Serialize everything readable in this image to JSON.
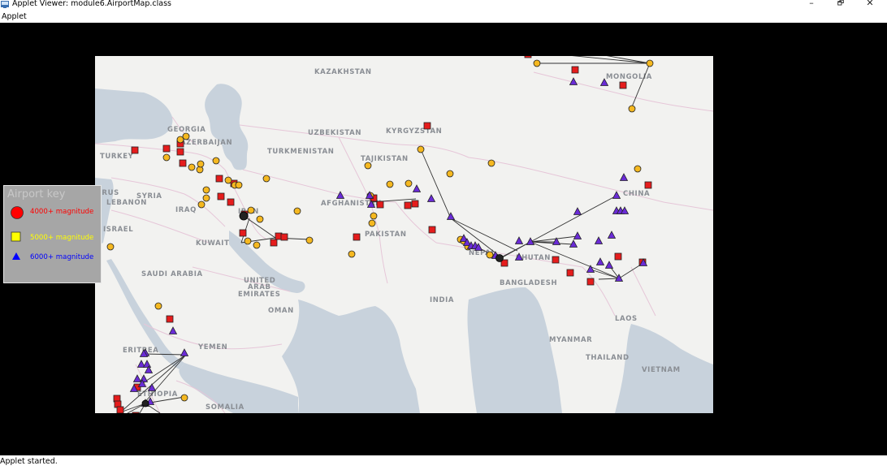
{
  "window": {
    "title": "Applet Viewer: module6.AirportMap.class",
    "minimize_glyph": "–",
    "maximize_glyph": "🗗",
    "close_glyph": "✕"
  },
  "menu": {
    "applet_label": "Applet"
  },
  "status": {
    "text": "Applet started."
  },
  "legend": {
    "title": "Airport key",
    "items": [
      {
        "label": "4000+ magnitude",
        "color": "#ff0000",
        "shape": "circle"
      },
      {
        "label": "5000+ magnitude",
        "color": "#ffff00",
        "shape": "square"
      },
      {
        "label": "6000+ magnitude",
        "color": "#0000ff",
        "shape": "triangle"
      }
    ]
  },
  "map": {
    "labels": {
      "kazakhstan": "KAZAKHSTAN",
      "mongolia": "MONGOLIA",
      "georgia": "GEORGIA",
      "azerbaijan": "AZERBAIJAN",
      "uzbekistan": "UZBEKISTAN",
      "kyrgyzstan": "KYRGYZSTAN",
      "turkey": "TURKEY",
      "turkmenistan": "TURKMENISTAN",
      "tajikistan": "TAJIKISTAN",
      "cyprus": "CYPRUS",
      "syria": "SYRIA",
      "lebanon": "LEBANON",
      "iraq": "IRAQ",
      "iran": "IRAN",
      "afghanistan": "AFGHANISTAN",
      "china": "CHINA",
      "israel": "ISRAEL",
      "pakistan": "PAKISTAN",
      "kuwait": "KUWAIT",
      "nepal": "NEPAL",
      "bhutan": "BHUTAN",
      "saudi_arabia": "SAUDI ARABIA",
      "uae_1": "UNITED",
      "uae_2": "ARAB",
      "uae_3": "EMIRATES",
      "bangladesh": "BANGLADESH",
      "india": "INDIA",
      "oman": "OMAN",
      "laos": "LAOS",
      "yemen": "YEMEN",
      "myanmar": "MYANMAR",
      "eritrea": "ERITREA",
      "thailand": "THAILAND",
      "vietnam": "VIETNAM",
      "ethiopia": "ETHIOPIA",
      "somalia": "SOMALIA"
    },
    "colors": {
      "land": "#f2f2f0",
      "water": "#c8d2dc",
      "border": "#e6c6d8",
      "red_marker": "#e51c1c",
      "yellow_marker": "#f5b820",
      "purple_marker": "#6a2bd6",
      "route": "#333333"
    }
  }
}
